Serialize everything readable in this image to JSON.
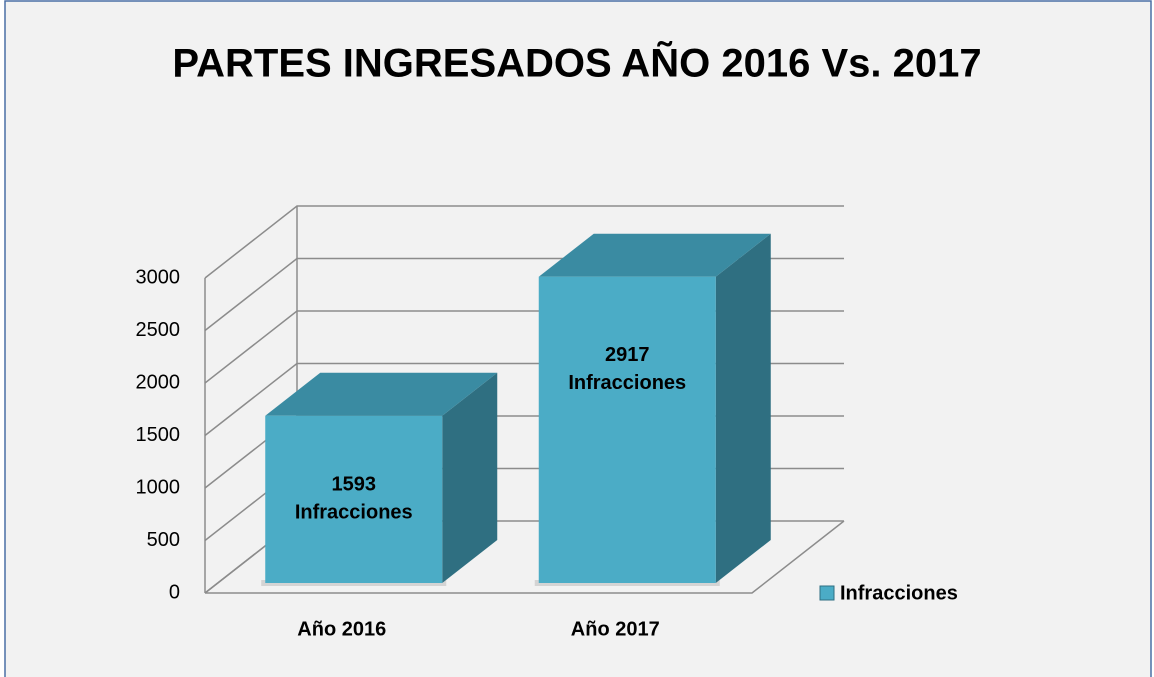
{
  "chart_data": {
    "type": "bar3d",
    "title": "PARTES INGRESADOS AÑO 2016 Vs. 2017",
    "categories": [
      "Año 2016",
      "Año 2017"
    ],
    "series": [
      {
        "name": "Infracciones",
        "color": "#4bacc6",
        "values": [
          1593,
          2917
        ],
        "value_labels": [
          "1593 Infracciones",
          "2917 Infracciones"
        ]
      }
    ],
    "ylim": [
      0,
      3000
    ],
    "yticks": [
      0,
      500,
      1000,
      1500,
      2000,
      2500,
      3000
    ],
    "grid": true,
    "legend": "right"
  }
}
